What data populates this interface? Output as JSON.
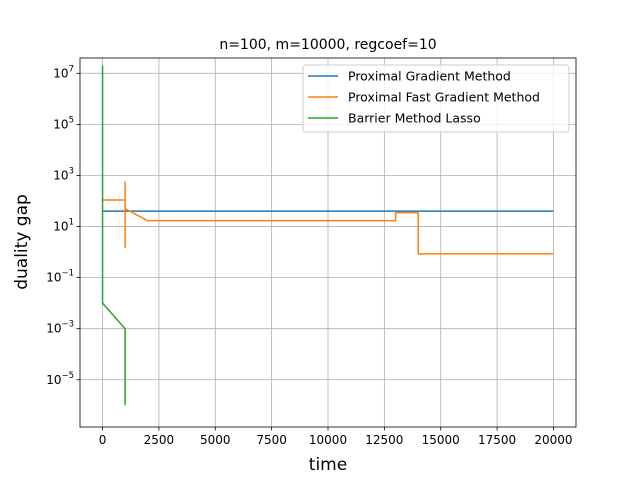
{
  "chart_data": {
    "type": "line",
    "title": "n=100, m=10000, regcoef=10",
    "xlabel": "time",
    "ylabel": "duality gap",
    "x_scale": "linear",
    "y_scale": "log",
    "xlim": [
      -1000,
      21000
    ],
    "ylim_log10": [
      -6.85,
      7.6
    ],
    "grid": true,
    "legend_position": "upper right",
    "x_ticks": [
      {
        "value": 0,
        "label": "0"
      },
      {
        "value": 2500,
        "label": "2500"
      },
      {
        "value": 5000,
        "label": "5000"
      },
      {
        "value": 7500,
        "label": "7500"
      },
      {
        "value": 10000,
        "label": "10000"
      },
      {
        "value": 12500,
        "label": "12500"
      },
      {
        "value": 15000,
        "label": "15000"
      },
      {
        "value": 17500,
        "label": "17500"
      },
      {
        "value": 20000,
        "label": "20000"
      }
    ],
    "y_ticks": [
      {
        "exp": 7,
        "base": "10",
        "sup": "7"
      },
      {
        "exp": 5,
        "base": "10",
        "sup": "5"
      },
      {
        "exp": 3,
        "base": "10",
        "sup": "3"
      },
      {
        "exp": 1,
        "base": "10",
        "sup": "1"
      },
      {
        "exp": -1,
        "base": "10",
        "sup": "−1"
      },
      {
        "exp": -3,
        "base": "10",
        "sup": "−3"
      },
      {
        "exp": -5,
        "base": "10",
        "sup": "−5"
      }
    ],
    "series": [
      {
        "name": "Proximal Gradient Method",
        "color": "#1f77b4",
        "points": [
          [
            0,
            40
          ],
          [
            20000,
            40
          ]
        ]
      },
      {
        "name": "Proximal Fast Gradient Method",
        "color": "#ff7f0e",
        "points": [
          [
            0,
            110
          ],
          [
            1000,
            110
          ],
          [
            1000,
            1.5
          ],
          [
            1000,
            550
          ],
          [
            1000,
            50
          ],
          [
            2000,
            17
          ],
          [
            13000,
            17
          ],
          [
            13000,
            35
          ],
          [
            14000,
            35
          ],
          [
            14000,
            0.85
          ],
          [
            20000,
            0.85
          ]
        ]
      },
      {
        "name": "Barrier Method Lasso",
        "color": "#2ca02c",
        "points": [
          [
            0,
            20000000
          ],
          [
            0,
            0.01
          ],
          [
            1000,
            0.001
          ],
          [
            1000,
            1e-06
          ]
        ]
      }
    ]
  }
}
